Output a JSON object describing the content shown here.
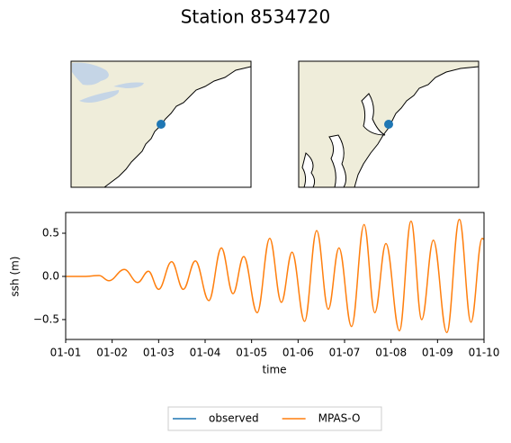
{
  "chart_data": {
    "type": "line",
    "title": "Station 8534720",
    "xlabel": "time",
    "ylabel": "ssh (m)",
    "x": [
      0,
      0.4,
      0.72,
      0.93,
      1.26,
      1.55,
      1.78,
      2.0,
      2.28,
      2.53,
      2.79,
      3.08,
      3.35,
      3.6,
      3.83,
      4.12,
      4.39,
      4.64,
      4.87,
      5.14,
      5.4,
      5.65,
      5.88,
      6.15,
      6.42,
      6.65,
      6.89,
      7.18,
      7.43,
      7.66,
      7.91,
      8.2,
      8.47,
      8.72,
      8.96,
      9.0
    ],
    "series": [
      {
        "name": "observed",
        "color": "#1f77b4",
        "values": [
          null,
          null,
          null,
          null,
          null,
          null,
          null,
          null,
          null,
          null,
          null,
          null,
          null,
          null,
          null,
          null,
          null,
          null,
          null,
          null,
          null,
          null,
          null,
          null,
          null,
          null,
          null,
          null,
          null,
          null,
          null,
          null,
          null,
          null,
          null,
          null
        ]
      },
      {
        "name": "MPAS-O",
        "color": "#ff7f0e",
        "values": [
          0,
          0,
          0.01,
          -0.05,
          0.08,
          -0.07,
          0.06,
          -0.15,
          0.17,
          -0.15,
          0.18,
          -0.28,
          0.33,
          -0.2,
          0.23,
          -0.42,
          0.44,
          -0.3,
          0.28,
          -0.52,
          0.53,
          -0.38,
          0.33,
          -0.58,
          0.6,
          -0.42,
          0.38,
          -0.63,
          0.64,
          -0.5,
          0.42,
          -0.65,
          0.66,
          -0.53,
          0.44,
          0.43
        ]
      }
    ],
    "xlim": [
      0,
      9
    ],
    "xticks": [
      {
        "value": 0,
        "label": "01-01"
      },
      {
        "value": 1,
        "label": "01-02"
      },
      {
        "value": 2,
        "label": "01-03"
      },
      {
        "value": 3,
        "label": "01-04"
      },
      {
        "value": 4,
        "label": "01-05"
      },
      {
        "value": 5,
        "label": "01-06"
      },
      {
        "value": 6,
        "label": "01-07"
      },
      {
        "value": 7,
        "label": "01-08"
      },
      {
        "value": 8,
        "label": "01-09"
      },
      {
        "value": 9,
        "label": "01-10"
      }
    ],
    "ylim": [
      -0.73,
      0.74
    ],
    "yticks": [
      {
        "value": -0.5,
        "label": "−0.5"
      },
      {
        "value": 0,
        "label": "0.0"
      },
      0.5
    ],
    "legend": "lower center"
  }
}
